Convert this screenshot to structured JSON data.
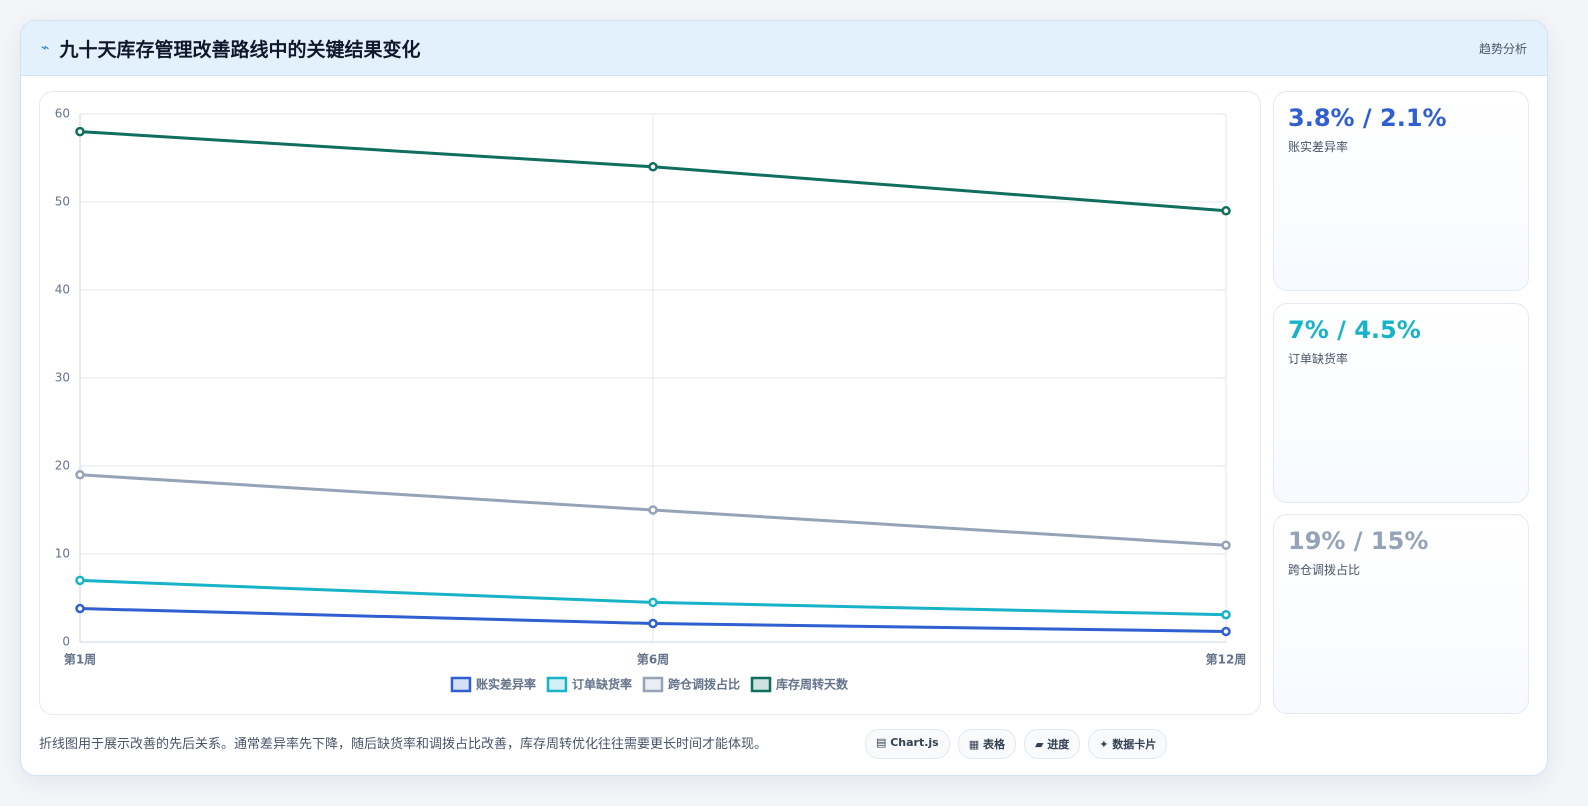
{
  "header": {
    "icon": "⌁",
    "title": "九十天库存管理改善路线中的关键结果变化",
    "tag": "趋势分析"
  },
  "chart_data": {
    "type": "line",
    "categories": [
      "第1周",
      "第6周",
      "第12周"
    ],
    "series": [
      {
        "name": "账实差异率",
        "color": "#2f5fd0",
        "values": [
          3.8,
          2.1,
          1.2
        ]
      },
      {
        "name": "订单缺货率",
        "color": "#17b3c9",
        "values": [
          7,
          4.5,
          3.1
        ]
      },
      {
        "name": "跨仓调拨占比",
        "color": "#94a3b8",
        "values": [
          19,
          15,
          11
        ]
      },
      {
        "name": "库存周转天数",
        "color": "#0f6e5e",
        "values": [
          58,
          54,
          49
        ]
      }
    ],
    "ylim": [
      0,
      60
    ],
    "yticks": [
      0,
      10,
      20,
      30,
      40,
      50,
      60
    ],
    "grid": true,
    "legend": "bottom"
  },
  "cards": [
    {
      "value": "3.8% / 2.1%",
      "label": "账实差异率",
      "color": "#2f5fd0"
    },
    {
      "value": "7% / 4.5%",
      "label": "订单缺货率",
      "color": "#17b3c9"
    },
    {
      "value": "19% / 15%",
      "label": "跨仓调拨占比",
      "color": "#94a3b8"
    }
  ],
  "footer": {
    "note": "折线图用于展示改善的先后关系。通常差异率先下降，随后缺货率和调拨占比改善，库存周转优化往往需要更长时间才能体现。",
    "buttons": [
      "▤ Chart.js",
      "▦ 表格",
      "▰ 进度",
      "✦ 数据卡片"
    ]
  }
}
